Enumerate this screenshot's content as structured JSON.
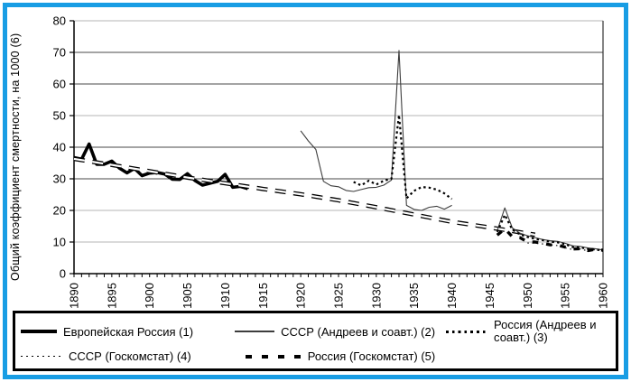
{
  "frame": {
    "accent_border_color": "#189de4",
    "legend_border_color": "#000000"
  },
  "chart_data": {
    "type": "line",
    "title": "",
    "xlabel": "",
    "ylabel": "Общий коэффициент смертности, на 1000 (6)",
    "xlim": [
      1890,
      1960
    ],
    "ylim": [
      0,
      80
    ],
    "x_ticks": [
      1890,
      1895,
      1900,
      1905,
      1910,
      1915,
      1920,
      1925,
      1930,
      1935,
      1940,
      1945,
      1950,
      1955,
      1960
    ],
    "y_ticks": [
      0,
      10,
      20,
      30,
      40,
      50,
      60,
      70,
      80
    ],
    "grid": "horizontal",
    "dark_gridlines": [
      30,
      40,
      60,
      70
    ],
    "dark_gridline_color": "#4a4a4a",
    "light_gridline_color": "#b5b5b5",
    "legend_position": "bottom",
    "series": [
      {
        "name": "european-russia",
        "label": "Европейская Россия (1)",
        "style": {
          "color": "#000000",
          "width": 3.6,
          "dash": "solid"
        },
        "segments": [
          [
            [
              1890,
              36.7
            ],
            [
              1891,
              36.2
            ],
            [
              1892,
              41.0
            ],
            [
              1893,
              34.6
            ],
            [
              1894,
              34.6
            ],
            [
              1895,
              35.6
            ],
            [
              1896,
              33.4
            ],
            [
              1897,
              31.9
            ],
            [
              1898,
              33.3
            ],
            [
              1899,
              31.0
            ],
            [
              1900,
              31.8
            ],
            [
              1901,
              32.0
            ],
            [
              1902,
              31.5
            ],
            [
              1903,
              29.9
            ],
            [
              1904,
              29.8
            ],
            [
              1905,
              31.6
            ],
            [
              1906,
              29.5
            ],
            [
              1907,
              28.0
            ],
            [
              1908,
              28.6
            ],
            [
              1909,
              29.2
            ],
            [
              1910,
              31.4
            ],
            [
              1911,
              27.3
            ],
            [
              1912,
              27.6
            ],
            [
              1913,
              26.9
            ]
          ]
        ]
      },
      {
        "name": "trend-line-6",
        "label": "",
        "style": {
          "color": "#000000",
          "width": 4.8,
          "dash": "dash-hollow"
        },
        "segments": [
          [
            [
              1890,
              36.3
            ],
            [
              1895,
              34.4
            ],
            [
              1900,
              32.4
            ],
            [
              1905,
              30.4
            ],
            [
              1910,
              28.6
            ],
            [
              1915,
              26.8
            ],
            [
              1920,
              25.1
            ],
            [
              1925,
              23.2
            ],
            [
              1930,
              21.0
            ],
            [
              1935,
              18.7
            ],
            [
              1940,
              16.4
            ],
            [
              1945,
              14.6
            ],
            [
              1948,
              13.5
            ],
            [
              1951,
              12.3
            ]
          ]
        ]
      },
      {
        "name": "ussr-andreev",
        "label": "СССР (Андреев и соавт.) (2)",
        "style": {
          "color": "#3d3d3d",
          "width": 1.1,
          "dash": "solid"
        },
        "segments": [
          [
            [
              1920,
              45.2
            ],
            [
              1921,
              42.0
            ],
            [
              1922,
              39.3
            ],
            [
              1923,
              29.2
            ],
            [
              1924,
              27.8
            ],
            [
              1925,
              27.5
            ],
            [
              1926,
              26.3
            ],
            [
              1927,
              26.0
            ],
            [
              1928,
              26.6
            ],
            [
              1929,
              27.2
            ],
            [
              1930,
              27.3
            ],
            [
              1931,
              28.0
            ],
            [
              1932,
              29.6
            ],
            [
              1933,
              70.6
            ],
            [
              1934,
              21.6
            ],
            [
              1935,
              20.3
            ],
            [
              1936,
              20.0
            ],
            [
              1937,
              21.0
            ],
            [
              1938,
              21.3
            ],
            [
              1939,
              20.4
            ],
            [
              1940,
              21.6
            ]
          ],
          [
            [
              1946,
              13.6
            ],
            [
              1947,
              20.8
            ],
            [
              1948,
              14.5
            ],
            [
              1949,
              12.8
            ],
            [
              1950,
              12.0
            ],
            [
              1951,
              11.4
            ],
            [
              1952,
              10.8
            ],
            [
              1953,
              10.4
            ],
            [
              1954,
              10.2
            ],
            [
              1955,
              9.6
            ],
            [
              1956,
              8.8
            ],
            [
              1957,
              8.6
            ],
            [
              1958,
              8.1
            ],
            [
              1959,
              7.9
            ],
            [
              1960,
              7.5
            ]
          ]
        ]
      },
      {
        "name": "russia-andreev",
        "label": "Россия (Андреев и соавт.) (3)",
        "style": {
          "color": "#000000",
          "width": 2.2,
          "dash": "dotted-bold"
        },
        "segments": [
          [
            [
              1927,
              29.0
            ],
            [
              1928,
              27.9
            ],
            [
              1929,
              29.4
            ],
            [
              1930,
              28.2
            ],
            [
              1931,
              29.4
            ],
            [
              1932,
              30.0
            ],
            [
              1933,
              50.2
            ],
            [
              1934,
              23.8
            ],
            [
              1935,
              26.2
            ],
            [
              1936,
              27.4
            ],
            [
              1937,
              27.2
            ],
            [
              1938,
              26.6
            ],
            [
              1939,
              25.4
            ],
            [
              1940,
              23.6
            ]
          ],
          [
            [
              1946,
              13.2
            ],
            [
              1947,
              18.6
            ],
            [
              1948,
              13.9
            ],
            [
              1949,
              12.4
            ],
            [
              1950,
              11.6
            ],
            [
              1951,
              11.0
            ],
            [
              1952,
              10.6
            ],
            [
              1953,
              10.1
            ],
            [
              1954,
              9.9
            ],
            [
              1955,
              9.3
            ],
            [
              1956,
              8.4
            ],
            [
              1957,
              8.3
            ],
            [
              1958,
              7.8
            ],
            [
              1959,
              7.7
            ],
            [
              1960,
              7.2
            ]
          ]
        ]
      },
      {
        "name": "ussr-goskomstat",
        "label": "СССР (Госкомстат) (4)",
        "style": {
          "color": "#1a1a1a",
          "width": 1.3,
          "dash": "dotted-fine"
        },
        "segments": [
          [
            [
              1950,
              9.7
            ],
            [
              1951,
              9.7
            ],
            [
              1952,
              9.4
            ],
            [
              1953,
              9.1
            ],
            [
              1954,
              8.9
            ],
            [
              1955,
              8.2
            ],
            [
              1956,
              7.6
            ],
            [
              1957,
              7.8
            ],
            [
              1958,
              7.2
            ],
            [
              1959,
              7.6
            ],
            [
              1960,
              7.1
            ]
          ]
        ]
      },
      {
        "name": "russia-goskomstat",
        "label": "Россия (Госкомстат) (5)",
        "style": {
          "color": "#000000",
          "width": 3.4,
          "dash": "dash-thick"
        },
        "segments": [
          [
            [
              1946,
              12.2
            ],
            [
              1947,
              14.2
            ],
            [
              1948,
              11.7
            ],
            [
              1949,
              11.4
            ],
            [
              1950,
              10.1
            ],
            [
              1951,
              10.0
            ],
            [
              1952,
              9.6
            ],
            [
              1953,
              9.1
            ],
            [
              1954,
              9.0
            ],
            [
              1955,
              8.4
            ],
            [
              1956,
              7.8
            ],
            [
              1957,
              7.9
            ],
            [
              1958,
              7.3
            ],
            [
              1959,
              7.7
            ],
            [
              1960,
              7.4
            ]
          ]
        ]
      }
    ]
  }
}
